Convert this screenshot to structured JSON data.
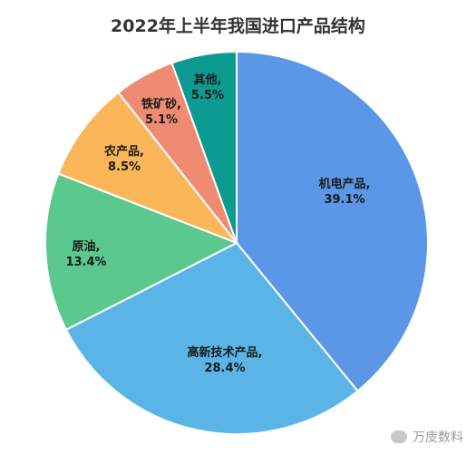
{
  "chart_data": {
    "type": "pie",
    "title": "2022年上半年我国进口产品结构",
    "slices": [
      {
        "label": "机电产品,",
        "value_label": "39.1%",
        "value": 39.1,
        "color": "#5b97e6"
      },
      {
        "label": "高新技术产品,",
        "value_label": "28.4%",
        "value": 28.4,
        "color": "#5ab5e6"
      },
      {
        "label": "原油,",
        "value_label": "13.4%",
        "value": 13.4,
        "color": "#5bc98d"
      },
      {
        "label": "农产品,",
        "value_label": "8.5%",
        "value": 8.5,
        "color": "#fbb65a"
      },
      {
        "label": "铁矿砂,",
        "value_label": "5.1%",
        "value": 5.1,
        "color": "#ef8a73"
      },
      {
        "label": "其他,",
        "value_label": "5.5%",
        "value": 5.5,
        "color": "#0d9a90"
      }
    ]
  },
  "watermark": {
    "text": "万庋数料",
    "icon": "wechat-icon"
  }
}
